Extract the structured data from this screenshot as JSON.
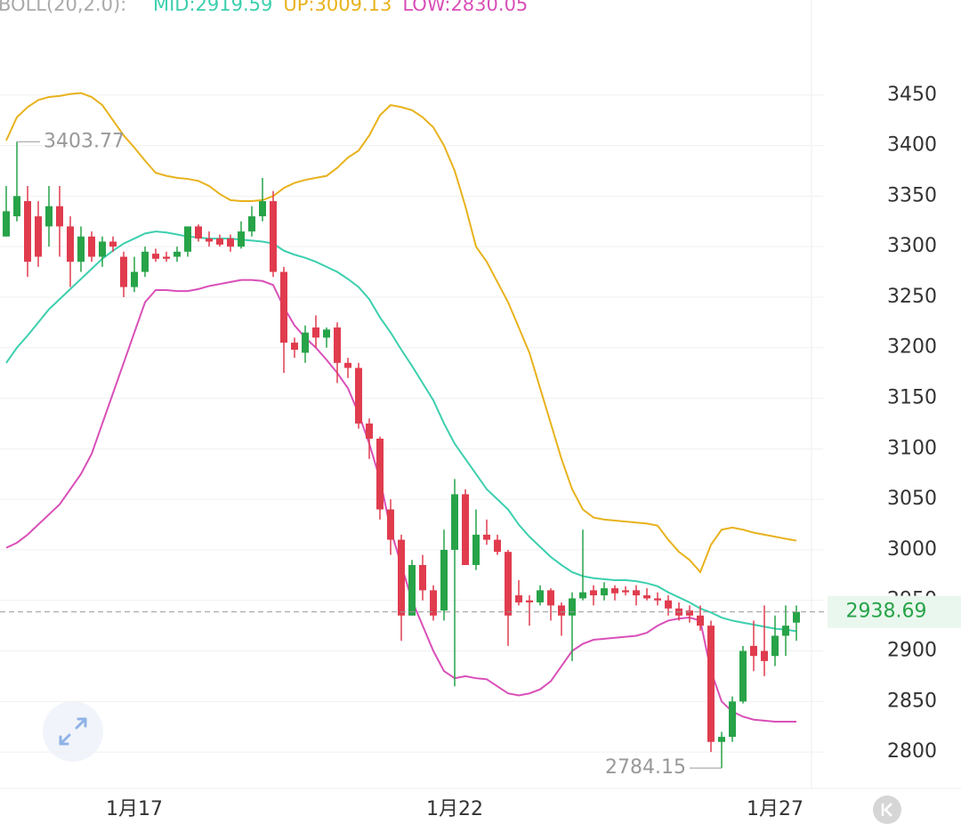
{
  "chart_data": {
    "type": "candlestick",
    "indicator": "BOLL(20,2.0):",
    "categories": [
      null,
      null,
      null,
      null,
      null,
      null,
      null,
      null,
      null,
      null,
      null,
      null,
      "1月17",
      null,
      null,
      null,
      null,
      null,
      null,
      null,
      null,
      null,
      null,
      null,
      null,
      null,
      null,
      null,
      null,
      null,
      null,
      null,
      null,
      null,
      null,
      null,
      null,
      null,
      null,
      null,
      null,
      null,
      "1月22",
      null,
      null,
      null,
      null,
      null,
      null,
      null,
      null,
      null,
      null,
      null,
      null,
      null,
      null,
      null,
      null,
      null,
      null,
      null,
      null,
      null,
      null,
      null,
      null,
      null,
      null,
      null,
      null,
      null,
      "1月27",
      null,
      null
    ],
    "open": [
      3310,
      3330,
      3345,
      3330,
      3320,
      3340,
      3320,
      3285,
      3310,
      3290,
      3305,
      3290,
      3260,
      3275,
      3293,
      3290,
      3290,
      3295,
      3320,
      3308,
      3308,
      3308,
      3300,
      3315,
      3330,
      3345,
      3275,
      3205,
      3195,
      3220,
      3210,
      3220,
      3185,
      3180,
      3125,
      3110,
      3040,
      3010,
      2935,
      2985,
      2960,
      2940,
      3000,
      3055,
      2985,
      3015,
      3010,
      2998,
      2955,
      2950,
      2948,
      2960,
      2945,
      2935,
      2952,
      2960,
      2955,
      2962,
      2960,
      2960,
      2955,
      2952,
      2950,
      2942,
      2940,
      2935,
      2925,
      2810,
      2815,
      2850,
      2905,
      2900,
      2895,
      2915,
      2928
    ],
    "high": [
      3360,
      3403.77,
      3360,
      3345,
      3360,
      3360,
      3330,
      3320,
      3315,
      3310,
      3310,
      3295,
      3290,
      3300,
      3298,
      3295,
      3300,
      3320,
      3322,
      3315,
      3312,
      3312,
      3325,
      3340,
      3368,
      3355,
      3280,
      3210,
      3222,
      3232,
      3220,
      3225,
      3190,
      3185,
      3130,
      3112,
      3050,
      3015,
      2990,
      2995,
      2965,
      3020,
      3070,
      3060,
      3040,
      3030,
      3015,
      3000,
      2970,
      2955,
      2965,
      2962,
      2948,
      2958,
      3020,
      2965,
      2968,
      2965,
      2964,
      2965,
      2962,
      2958,
      2955,
      2948,
      2945,
      2945,
      2930,
      2820,
      2855,
      2905,
      2930,
      2945,
      2935,
      2945,
      2945
    ],
    "low": [
      3310,
      3325,
      3270,
      3280,
      3300,
      3290,
      3260,
      3275,
      3285,
      3280,
      3295,
      3250,
      3255,
      3270,
      3285,
      3285,
      3285,
      3290,
      3305,
      3300,
      3300,
      3295,
      3298,
      3310,
      3325,
      3270,
      3175,
      3190,
      3185,
      3200,
      3200,
      3165,
      3170,
      3120,
      3090,
      3030,
      2995,
      2910,
      2935,
      2950,
      2930,
      2930,
      2865,
      2985,
      2980,
      3005,
      2995,
      2905,
      2945,
      2925,
      2945,
      2930,
      2915,
      2890,
      2950,
      2945,
      2950,
      2950,
      2955,
      2945,
      2950,
      2945,
      2935,
      2930,
      2928,
      2920,
      2800,
      2784.15,
      2810,
      2848,
      2880,
      2875,
      2885,
      2895,
      2910
    ],
    "close": [
      3335,
      3350,
      3285,
      3290,
      3340,
      3320,
      3285,
      3310,
      3290,
      3305,
      3300,
      3260,
      3275,
      3295,
      3288,
      3288,
      3295,
      3320,
      3308,
      3305,
      3302,
      3300,
      3315,
      3330,
      3345,
      3275,
      3205,
      3198,
      3215,
      3210,
      3218,
      3185,
      3180,
      3125,
      3110,
      3040,
      3010,
      2935,
      2985,
      2960,
      2935,
      3000,
      3055,
      2985,
      3015,
      3010,
      2998,
      2935,
      2948,
      2948,
      2960,
      2945,
      2935,
      2952,
      2958,
      2955,
      2962,
      2957,
      2958,
      2955,
      2952,
      2950,
      2942,
      2935,
      2935,
      2925,
      2810,
      2815,
      2850,
      2900,
      2895,
      2890,
      2915,
      2925,
      2938.69
    ],
    "up_color": "#27a348",
    "down_color": "#e03c4e",
    "series": [
      {
        "name": "MID:2919.59",
        "color": "#3ccfae",
        "values": [
          3185,
          3200,
          3212,
          3225,
          3238,
          3248,
          3258,
          3268,
          3278,
          3288,
          3296,
          3303,
          3308,
          3313,
          3315,
          3314,
          3312,
          3310,
          3309,
          3308,
          3308,
          3308,
          3307,
          3306,
          3305,
          3303,
          3296,
          3292,
          3289,
          3285,
          3280,
          3275,
          3268,
          3260,
          3248,
          3230,
          3215,
          3198,
          3182,
          3165,
          3148,
          3125,
          3105,
          3090,
          3075,
          3060,
          3050,
          3040,
          3025,
          3013,
          3003,
          2993,
          2985,
          2978,
          2974,
          2972,
          2971,
          2970,
          2970,
          2969,
          2967,
          2964,
          2958,
          2953,
          2948,
          2942,
          2938,
          2933,
          2930,
          2928,
          2926,
          2924,
          2922,
          2921,
          2919.59
        ]
      },
      {
        "name": "UP:3009.13",
        "color": "#e8b21c",
        "values": [
          3405,
          3428,
          3438,
          3445,
          3448,
          3449,
          3451,
          3452,
          3448,
          3440,
          3425,
          3410,
          3398,
          3385,
          3373,
          3370,
          3368,
          3367,
          3365,
          3360,
          3352,
          3346,
          3345,
          3345,
          3346,
          3350,
          3358,
          3363,
          3366,
          3368,
          3370,
          3378,
          3388,
          3395,
          3410,
          3430,
          3440,
          3438,
          3435,
          3428,
          3418,
          3400,
          3375,
          3340,
          3300,
          3285,
          3265,
          3245,
          3220,
          3195,
          3160,
          3125,
          3090,
          3060,
          3040,
          3032,
          3030,
          3029,
          3028,
          3027,
          3026,
          3024,
          3010,
          2998,
          2990,
          2978,
          3005,
          3020,
          3022,
          3020,
          3017,
          3015,
          3013,
          3011,
          3009.13
        ]
      },
      {
        "name": "LOW:2830.05",
        "color": "#d94fb8",
        "values": [
          3002,
          3007,
          3015,
          3025,
          3035,
          3045,
          3060,
          3075,
          3095,
          3125,
          3155,
          3185,
          3215,
          3245,
          3257,
          3257,
          3256,
          3256,
          3258,
          3261,
          3263,
          3265,
          3267,
          3267,
          3266,
          3262,
          3240,
          3222,
          3210,
          3200,
          3188,
          3175,
          3160,
          3135,
          3105,
          3070,
          3020,
          2985,
          2950,
          2925,
          2900,
          2880,
          2873,
          2875,
          2873,
          2872,
          2865,
          2858,
          2856,
          2858,
          2862,
          2870,
          2885,
          2900,
          2907,
          2911,
          2912,
          2913,
          2914,
          2915,
          2918,
          2925,
          2930,
          2932,
          2933,
          2930,
          2880,
          2850,
          2840,
          2835,
          2832,
          2831,
          2830,
          2830,
          2830.05
        ]
      }
    ],
    "high_label": 3403.77,
    "low_label": 2784.15,
    "last_price": 2938.69,
    "ylim": [
      2764,
      3544
    ],
    "yticks": [
      2800,
      2850,
      2900,
      2950,
      3000,
      3050,
      3100,
      3150,
      3200,
      3250,
      3300,
      3350,
      3400,
      3450
    ],
    "grid": true
  }
}
